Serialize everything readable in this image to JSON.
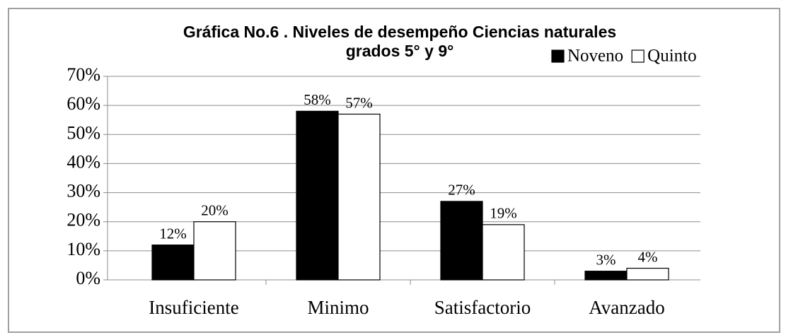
{
  "chart_data": {
    "type": "bar",
    "title": [
      "Gráfica No.6 . Niveles de desempeño Ciencias naturales",
      "grados 5° y 9°"
    ],
    "categories": [
      "Insuficiente",
      "Minimo",
      "Satisfactorio",
      "Avanzado"
    ],
    "series": [
      {
        "name": "Noveno",
        "color": "#000000",
        "values": [
          12,
          58,
          27,
          3
        ],
        "value_labels": [
          "12%",
          "58%",
          "27%",
          "3%"
        ]
      },
      {
        "name": "Quinto",
        "color": "#ffffff",
        "values": [
          20,
          57,
          19,
          4
        ],
        "value_labels": [
          "20%",
          "57%",
          "19%",
          "4%"
        ]
      }
    ],
    "ylim": [
      0,
      70
    ],
    "yticks": [
      {
        "value": 0,
        "label": "0%"
      },
      {
        "value": 10,
        "label": "10%"
      },
      {
        "value": 20,
        "label": "20%"
      },
      {
        "value": 30,
        "label": "30%"
      },
      {
        "value": 40,
        "label": "40%"
      },
      {
        "value": 50,
        "label": "50%"
      },
      {
        "value": 60,
        "label": "60%"
      },
      {
        "value": 70,
        "label": "70%"
      }
    ],
    "grid": true,
    "legend": "top-right"
  }
}
